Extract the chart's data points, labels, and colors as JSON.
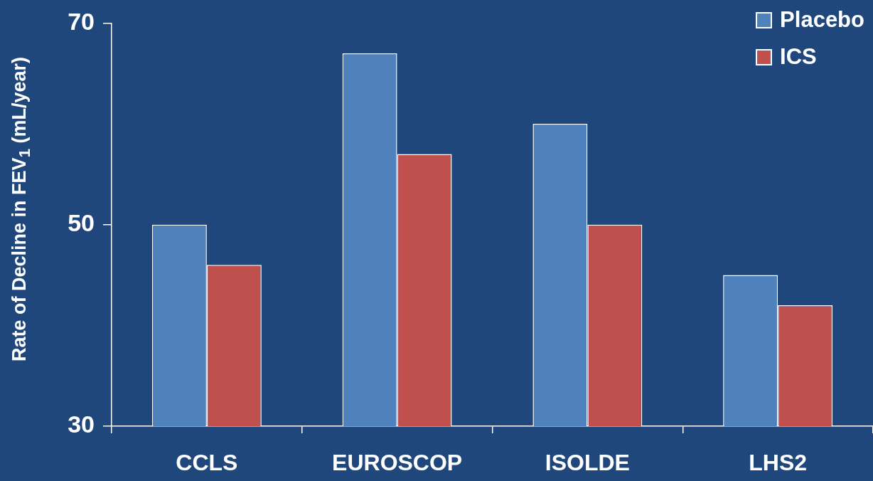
{
  "chart_data": {
    "type": "bar",
    "ylabel": "Rate of Decline in FEV$_{1}$ (mL/year)",
    "categories": [
      "CCLS",
      "EUROSCOP",
      "ISOLDE",
      "LHS2"
    ],
    "series": [
      {
        "name": "Placebo",
        "color": "#4f81bd",
        "values": [
          50,
          67,
          60,
          45
        ]
      },
      {
        "name": "ICS",
        "color": "#c0504d",
        "values": [
          46,
          57,
          50,
          42
        ]
      }
    ],
    "ylim": [
      30,
      70
    ],
    "yticks": [
      30,
      50,
      70
    ],
    "legend": "top right"
  }
}
